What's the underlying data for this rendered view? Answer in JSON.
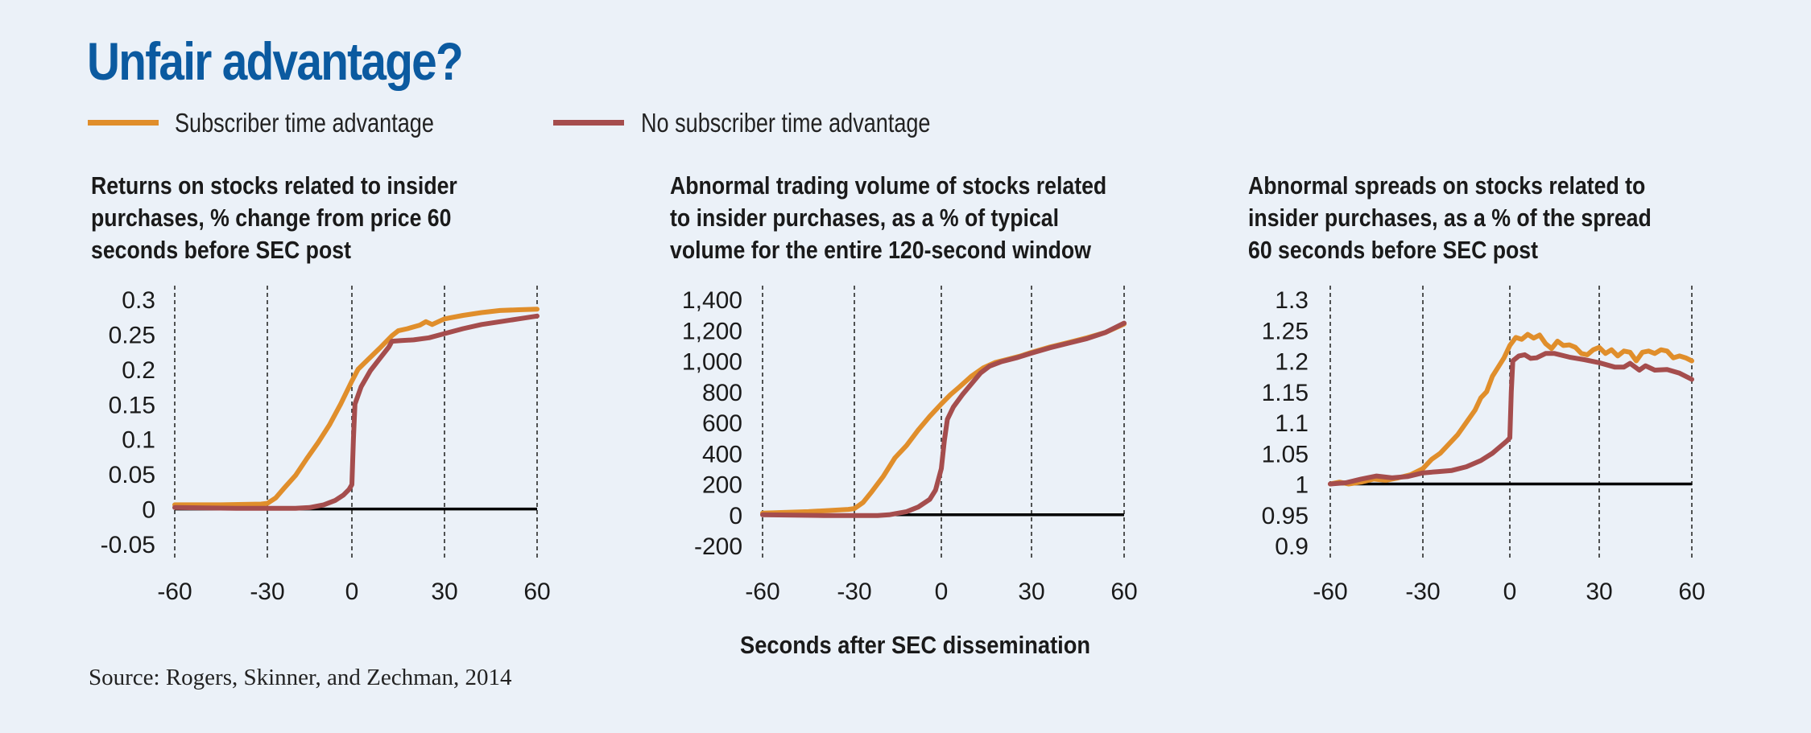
{
  "title": "Unfair advantage?",
  "legend": [
    {
      "label": "Subscriber time advantage",
      "color": "#e08e2b"
    },
    {
      "label": "No subscriber time advantage",
      "color": "#a54d4d"
    }
  ],
  "x_axis_title": "Seconds after SEC dissemination",
  "source": "Source: Rogers, Skinner, and Zechman, 2014",
  "chart_data": [
    {
      "type": "line",
      "title_lines": [
        "Returns on stocks related to insider",
        "purchases, % change from price 60",
        "seconds before SEC post"
      ],
      "xlabel": "Seconds after SEC dissemination",
      "xlim": [
        -60,
        60
      ],
      "xticks": [
        "-60",
        "-30",
        "0",
        "30",
        "60"
      ],
      "ylim": [
        -0.05,
        0.3
      ],
      "yticks": [
        "0.3",
        "0.25",
        "0.2",
        "0.15",
        "0.1",
        "0.05",
        "0",
        "-0.05"
      ],
      "ytick_values": [
        0.3,
        0.25,
        0.2,
        0.15,
        0.1,
        0.05,
        0,
        -0.05
      ],
      "baseline": 0,
      "grid": "vertical dashed",
      "series": [
        {
          "name": "Subscriber time advantage",
          "color": "#e08e2b",
          "x": [
            -60,
            -45,
            -32,
            -30,
            -27,
            -24,
            -20,
            -16,
            -12,
            -8,
            -4,
            0,
            2,
            5,
            9,
            13,
            15,
            18,
            22,
            24,
            26,
            28,
            30,
            36,
            42,
            48,
            54,
            60
          ],
          "y": [
            0.006,
            0.006,
            0.007,
            0.008,
            0.016,
            0.03,
            0.048,
            0.072,
            0.095,
            0.12,
            0.15,
            0.183,
            0.2,
            0.213,
            0.23,
            0.248,
            0.255,
            0.258,
            0.263,
            0.268,
            0.264,
            0.268,
            0.272,
            0.277,
            0.281,
            0.284,
            0.285,
            0.286
          ]
        },
        {
          "name": "No subscriber time advantage",
          "color": "#a54d4d",
          "x": [
            -60,
            -40,
            -20,
            -15,
            -10,
            -6,
            -3,
            -1,
            0,
            0.5,
            1,
            3,
            6,
            9,
            12,
            13,
            16,
            20,
            25,
            30,
            36,
            42,
            48,
            54,
            60
          ],
          "y": [
            0.002,
            0.001,
            0.001,
            0.002,
            0.006,
            0.012,
            0.02,
            0.028,
            0.035,
            0.1,
            0.15,
            0.175,
            0.198,
            0.215,
            0.232,
            0.24,
            0.241,
            0.242,
            0.245,
            0.251,
            0.258,
            0.264,
            0.268,
            0.272,
            0.276
          ]
        }
      ]
    },
    {
      "type": "line",
      "title_lines": [
        "Abnormal trading volume of stocks related",
        "to insider purchases, as a % of typical",
        "volume for the entire 120-second window"
      ],
      "xlabel": "Seconds after SEC dissemination",
      "xlim": [
        -60,
        60
      ],
      "xticks": [
        "-60",
        "-30",
        "0",
        "30",
        "60"
      ],
      "ylim": [
        -200,
        1400
      ],
      "yticks": [
        "1,400",
        "1,200",
        "1,000",
        "800",
        "600",
        "400",
        "200",
        "0",
        "-200"
      ],
      "ytick_values": [
        1400,
        1200,
        1000,
        800,
        600,
        400,
        200,
        0,
        -200
      ],
      "baseline": 0,
      "grid": "vertical dashed",
      "series": [
        {
          "name": "Subscriber time advantage",
          "color": "#e08e2b",
          "x": [
            -60,
            -45,
            -32,
            -30,
            -27,
            -24,
            -20,
            -16,
            -12,
            -8,
            -4,
            0,
            3,
            6,
            10,
            14,
            18,
            22,
            26,
            30,
            36,
            42,
            48,
            54,
            60
          ],
          "y": [
            10,
            20,
            35,
            40,
            80,
            150,
            250,
            370,
            450,
            550,
            640,
            720,
            780,
            830,
            900,
            955,
            990,
            1010,
            1030,
            1055,
            1090,
            1120,
            1150,
            1185,
            1240
          ]
        },
        {
          "name": "No subscriber time advantage",
          "color": "#a54d4d",
          "x": [
            -60,
            -40,
            -22,
            -18,
            -12,
            -8,
            -4,
            -2,
            0,
            1,
            2,
            4,
            7,
            10,
            13,
            16,
            20,
            25,
            30,
            36,
            42,
            48,
            54,
            60
          ],
          "y": [
            0,
            -5,
            -5,
            0,
            20,
            50,
            100,
            160,
            300,
            480,
            620,
            700,
            780,
            850,
            920,
            965,
            995,
            1020,
            1050,
            1085,
            1115,
            1145,
            1185,
            1245
          ]
        }
      ]
    },
    {
      "type": "line",
      "title_lines": [
        "Abnormal spreads on stocks related to",
        "insider purchases, as a % of the spread",
        "60 seconds before SEC post"
      ],
      "xlabel": "Seconds after SEC dissemination",
      "xlim": [
        -60,
        60
      ],
      "xticks": [
        "-60",
        "-30",
        "0",
        "30",
        "60"
      ],
      "ylim": [
        0.9,
        1.3
      ],
      "yticks": [
        "1.3",
        "1.25",
        "1.2",
        "1.15",
        "1.1",
        "1.05",
        "1",
        "0.95",
        "0.9"
      ],
      "ytick_values": [
        1.3,
        1.25,
        1.2,
        1.15,
        1.1,
        1.05,
        1,
        0.95,
        0.9
      ],
      "baseline": 1,
      "grid": "vertical dashed",
      "series": [
        {
          "name": "Subscriber time advantage",
          "color": "#e08e2b",
          "x": [
            -60,
            -57,
            -54,
            -50,
            -46,
            -42,
            -38,
            -34,
            -30,
            -27,
            -24,
            -21,
            -18,
            -15,
            -12,
            -10,
            -8,
            -6,
            -4,
            -2,
            0,
            2,
            4,
            6,
            8,
            10,
            12,
            14,
            16,
            18,
            20,
            22,
            24,
            26,
            28,
            30,
            32,
            34,
            36,
            38,
            40,
            42,
            44,
            46,
            48,
            50,
            52,
            54,
            56,
            58,
            60
          ],
          "y": [
            1.0,
            1.003,
            1.0,
            1.003,
            1.008,
            1.006,
            1.01,
            1.015,
            1.025,
            1.04,
            1.05,
            1.065,
            1.08,
            1.1,
            1.12,
            1.14,
            1.15,
            1.175,
            1.19,
            1.205,
            1.225,
            1.238,
            1.235,
            1.243,
            1.237,
            1.242,
            1.228,
            1.22,
            1.232,
            1.225,
            1.226,
            1.222,
            1.212,
            1.21,
            1.218,
            1.222,
            1.212,
            1.218,
            1.208,
            1.216,
            1.214,
            1.2,
            1.214,
            1.216,
            1.212,
            1.218,
            1.216,
            1.205,
            1.208,
            1.205,
            1.2
          ]
        },
        {
          "name": "No subscriber time advantage",
          "color": "#a54d4d",
          "x": [
            -60,
            -55,
            -50,
            -45,
            -40,
            -35,
            -30,
            -25,
            -20,
            -15,
            -10,
            -6,
            -3,
            -1,
            0,
            0.5,
            1,
            3,
            5,
            7,
            9,
            12,
            15,
            20,
            25,
            30,
            35,
            38,
            40,
            43,
            45,
            48,
            52,
            56,
            60
          ],
          "y": [
            1.0,
            1.002,
            1.008,
            1.013,
            1.01,
            1.012,
            1.018,
            1.02,
            1.022,
            1.028,
            1.038,
            1.05,
            1.062,
            1.07,
            1.075,
            1.15,
            1.2,
            1.208,
            1.21,
            1.204,
            1.205,
            1.212,
            1.212,
            1.206,
            1.202,
            1.197,
            1.19,
            1.19,
            1.196,
            1.185,
            1.192,
            1.185,
            1.186,
            1.18,
            1.17
          ]
        }
      ]
    }
  ]
}
